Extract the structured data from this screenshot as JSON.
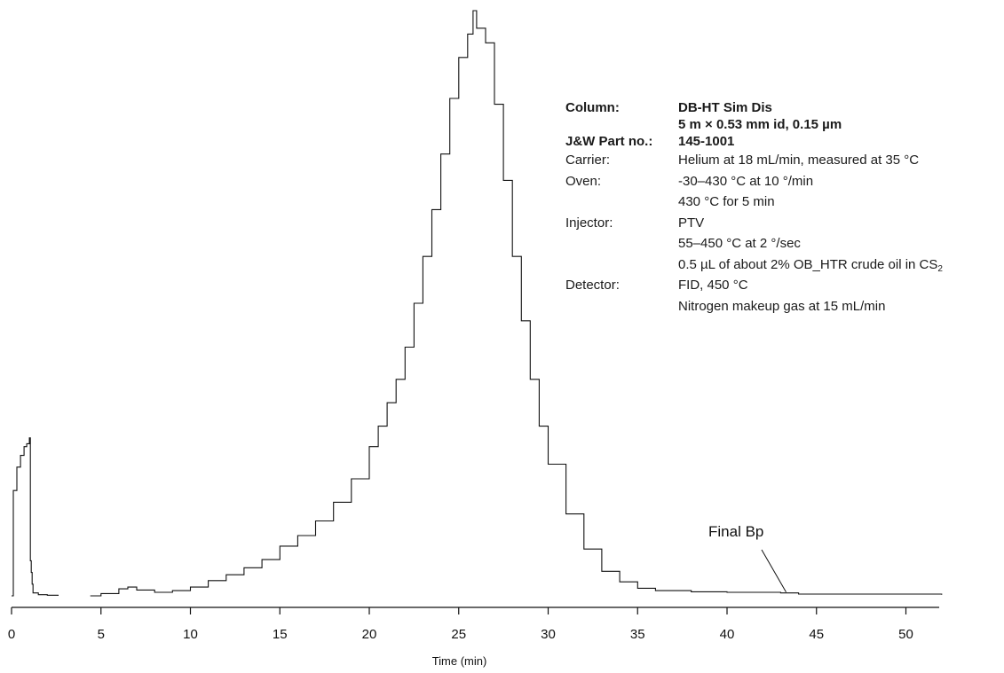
{
  "chart_data": {
    "type": "line",
    "title": "",
    "xlabel": "Time (min)",
    "ylabel": "",
    "xlim": [
      0,
      52
    ],
    "ylim": [
      0,
      100
    ],
    "x_ticks": [
      0,
      5,
      10,
      15,
      20,
      25,
      30,
      35,
      40,
      45,
      50
    ],
    "grid": false,
    "series": [
      {
        "x": [
          0.0,
          0.1,
          0.3,
          0.5,
          0.7,
          0.85,
          1.0,
          1.05,
          1.1,
          1.15,
          1.2,
          1.5,
          2.0,
          2.6
        ],
        "y": [
          0,
          18,
          22,
          24,
          25.5,
          26,
          27,
          6,
          4,
          2,
          0.5,
          0.2,
          0.1,
          0
        ]
      },
      {
        "x": [
          4.4,
          5,
          6,
          6.5,
          7,
          8,
          9,
          10,
          11,
          12,
          13,
          14,
          15,
          16,
          17,
          18,
          19,
          20,
          20.5,
          21,
          21.5,
          22,
          22.5,
          23,
          23.5,
          24,
          24.5,
          25,
          25.5,
          25.8,
          26,
          26.5,
          27,
          27.5,
          28,
          28.5,
          29,
          29.5,
          30,
          31,
          32,
          33,
          34,
          35,
          36,
          38,
          40,
          43,
          44,
          46,
          52
        ],
        "y": [
          0,
          0.4,
          1.2,
          1.5,
          1.0,
          0.6,
          0.9,
          1.5,
          2.6,
          3.6,
          4.8,
          6.2,
          8.5,
          10.3,
          12.8,
          16.0,
          20.0,
          25.5,
          29.0,
          33.0,
          37.0,
          42.5,
          50.0,
          58.0,
          66.0,
          75.5,
          85.0,
          92.0,
          96.0,
          100.0,
          97.0,
          94.5,
          84.0,
          71.0,
          58.0,
          47.0,
          37.0,
          29.0,
          22.5,
          14.0,
          8.0,
          4.2,
          2.4,
          1.3,
          0.9,
          0.7,
          0.6,
          0.5,
          0.3,
          0.3,
          0.2
        ]
      }
    ],
    "annotations": [
      {
        "text": "Final Bp",
        "x": 43.3,
        "y": 0.5
      }
    ]
  },
  "conditions": [
    {
      "label": "Column:",
      "value": "DB-HT Sim Dis",
      "bold": true
    },
    {
      "label": "",
      "value": "5 m × 0.53 mm id, 0.15 µm",
      "bold": true
    },
    {
      "label": "J&W Part no.:",
      "value": "145-1001",
      "bold": true
    },
    {
      "label": "Carrier:",
      "value": "Helium at 18 mL/min, measured at 35 °C",
      "bold": false
    },
    {
      "label": "Oven:",
      "value": "-30–430 °C at 10 °/min",
      "bold": false
    },
    {
      "label": "",
      "value": "430 °C for 5 min",
      "bold": false
    },
    {
      "label": "Injector:",
      "value": "PTV",
      "bold": false
    },
    {
      "label": "",
      "value": "55–450 °C at 2 °/sec",
      "bold": false
    },
    {
      "label": "",
      "value": "0.5 µL of about 2% OB_HTR crude oil in CS",
      "sub": "2",
      "bold": false
    },
    {
      "label": "Detector:",
      "value": "FID, 450 °C",
      "bold": false
    },
    {
      "label": "",
      "value": "Nitrogen makeup gas at 15 mL/min",
      "bold": false
    }
  ]
}
